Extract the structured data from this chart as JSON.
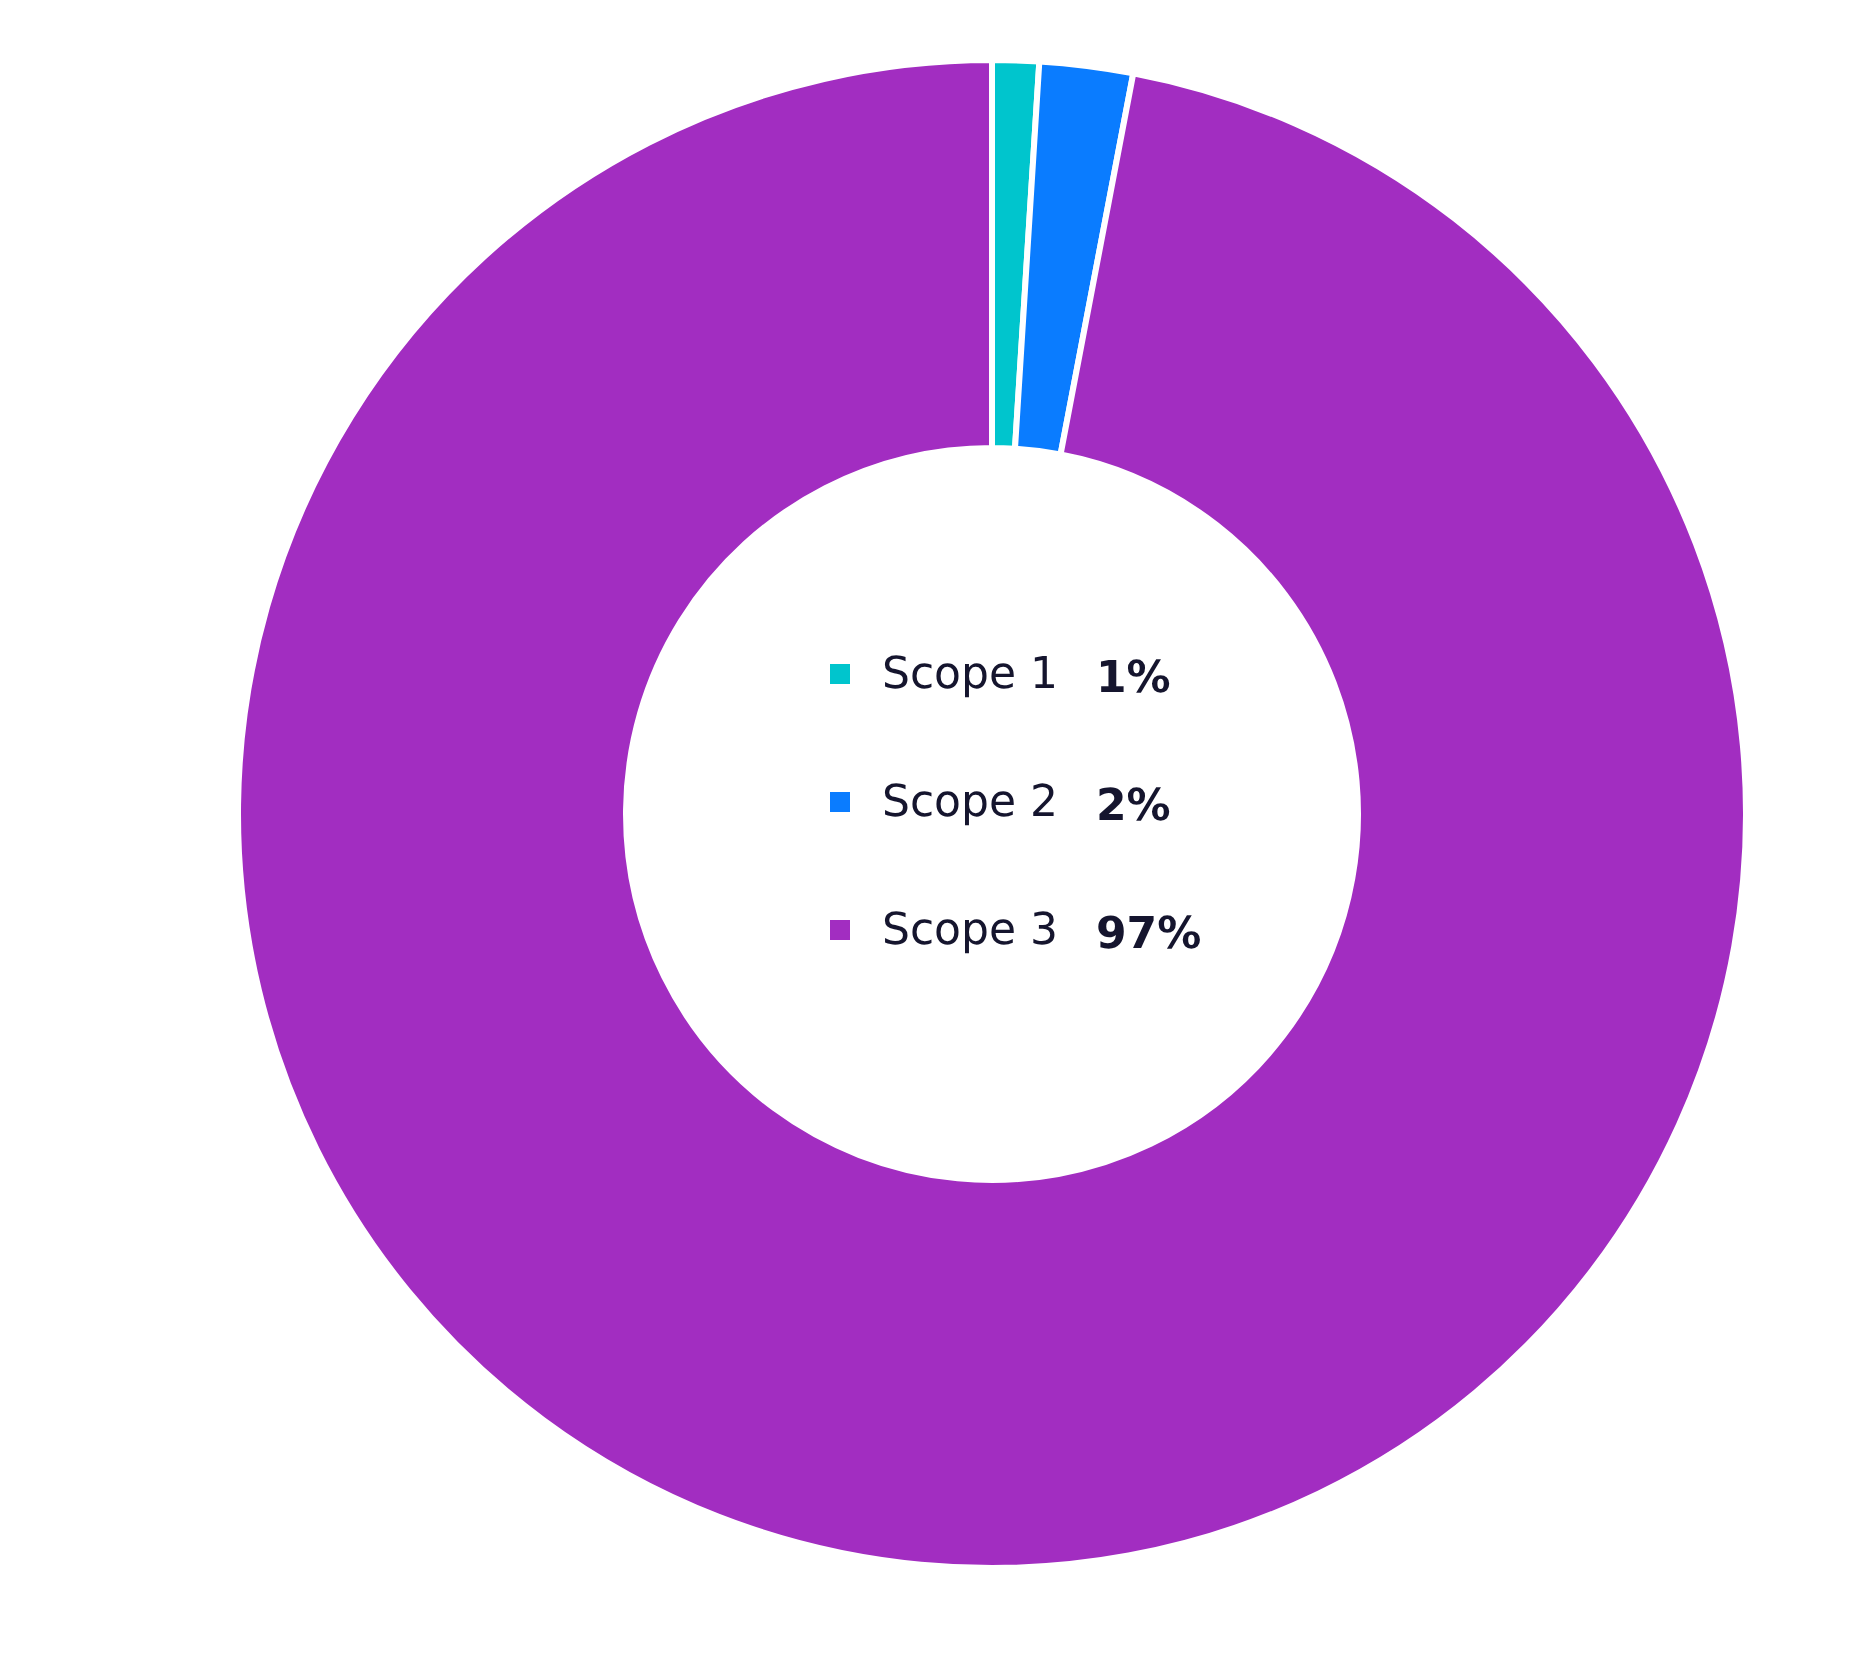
{
  "chart_data": {
    "type": "donut",
    "categories": [
      "Scope 1",
      "Scope 2",
      "Scope 3"
    ],
    "values": [
      1,
      2,
      97
    ],
    "colors": [
      "#00c5cd",
      "#0a7cff",
      "#a22dc1"
    ],
    "value_labels": [
      "1%",
      "2%",
      "97%"
    ],
    "legend": "center"
  }
}
